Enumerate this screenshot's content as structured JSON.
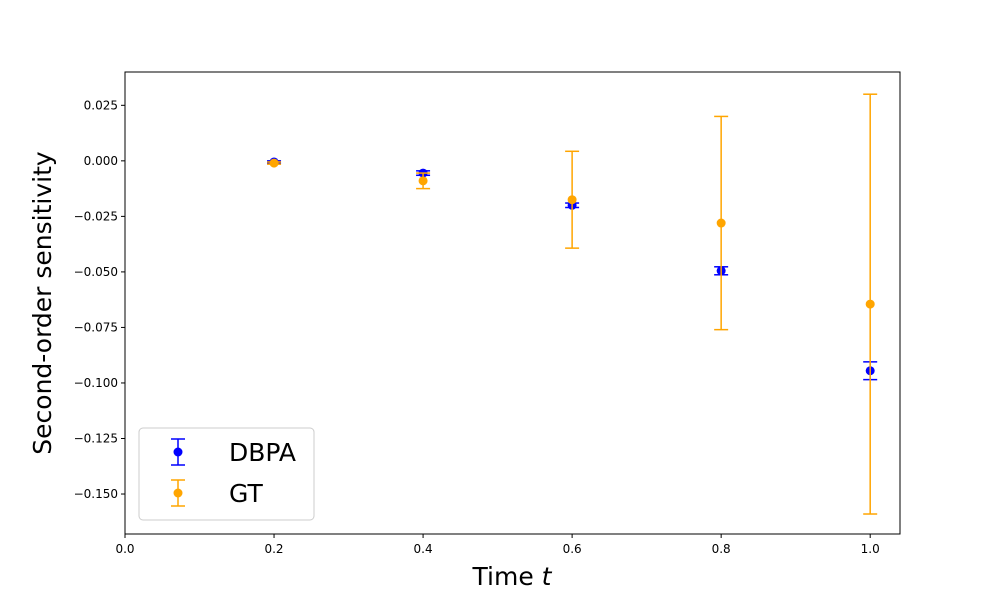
{
  "chart_data": {
    "type": "scatter",
    "title": "",
    "xlabel": "Time",
    "xlabel_var": "t",
    "ylabel": "Second-order sensitivity",
    "xlim": [
      0.0,
      1.04
    ],
    "ylim": [
      -0.168,
      0.04
    ],
    "x_ticks": [
      0.0,
      0.2,
      0.4,
      0.6,
      0.8,
      1.0
    ],
    "x_tick_labels": [
      "0.0",
      "0.2",
      "0.4",
      "0.6",
      "0.8",
      "1.0"
    ],
    "y_ticks": [
      0.025,
      0.0,
      -0.025,
      -0.05,
      -0.075,
      -0.1,
      -0.125,
      -0.15
    ],
    "y_tick_labels": [
      "0.025",
      "0.000",
      "−0.025",
      "−0.050",
      "−0.075",
      "−0.100",
      "−0.125",
      "−0.150"
    ],
    "grid": false,
    "legend_position": "lower-left",
    "series": [
      {
        "name": "DBPA",
        "color": "#0000ff",
        "marker": "circle",
        "errorbars": true,
        "x": [
          0.2,
          0.4,
          0.6,
          0.8,
          1.0
        ],
        "y": [
          -0.0005,
          -0.0055,
          -0.02,
          -0.0495,
          -0.0945
        ],
        "err": [
          0.0005,
          0.001,
          0.001,
          0.0018,
          0.004
        ]
      },
      {
        "name": "GT",
        "color": "#ffa500",
        "marker": "circle",
        "errorbars": true,
        "x": [
          0.2,
          0.4,
          0.6,
          0.8,
          1.0
        ],
        "y": [
          -0.001,
          -0.009,
          -0.0175,
          -0.028,
          -0.0645
        ],
        "err": [
          0.0005,
          0.0035,
          0.0218,
          0.048,
          0.0945
        ]
      }
    ]
  }
}
